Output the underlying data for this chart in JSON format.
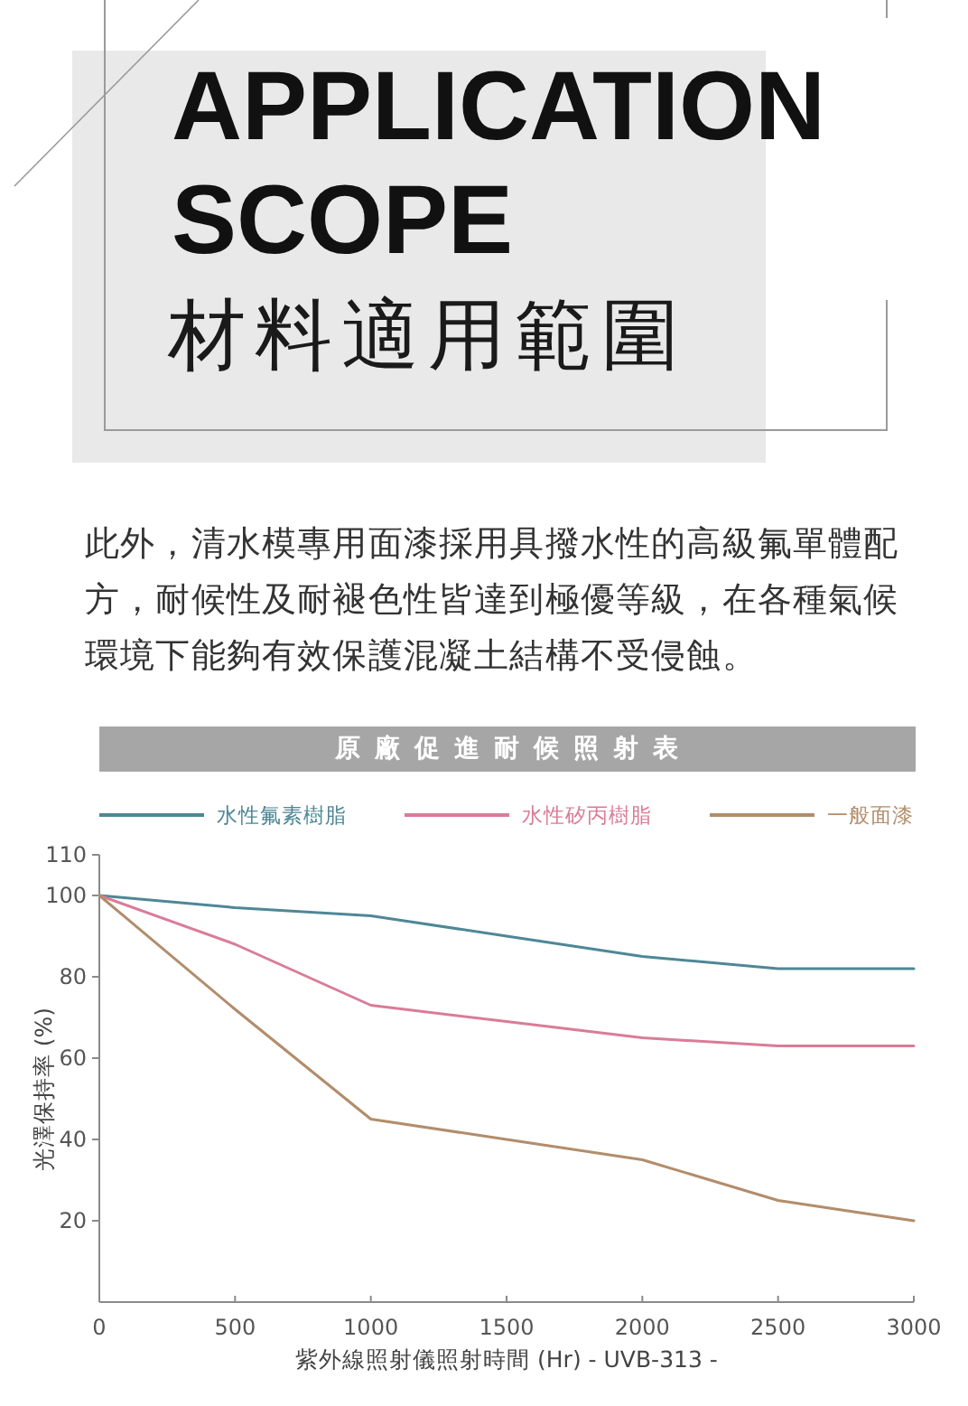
{
  "chart_data": {
    "type": "line",
    "title": "原廠促進耐候照射表",
    "annotations": [
      "APPLICATION SCOPE",
      "材料適用範圍",
      "此外，清水模專用面漆採用具撥水性的高級氟單體配方，耐候性及耐褪色性皆達到極優等級，在各種氣候環境下能夠有效保護混凝土結構不受侵蝕。"
    ],
    "xlabel": "紫外線照射儀照射時間 (Hr) - UVB-313 -",
    "ylabel": "光澤保持率 (%)",
    "x": [
      0,
      500,
      1000,
      1500,
      2000,
      2500,
      3000
    ],
    "series": [
      {
        "name": "水性氟素樹脂",
        "color": "#4e8796",
        "values": [
          100,
          97,
          95,
          90,
          85,
          82,
          82
        ]
      },
      {
        "name": "水性矽丙樹脂",
        "color": "#d97c98",
        "values": [
          100,
          88,
          73,
          69,
          65,
          63,
          63
        ]
      },
      {
        "name": "一般面漆",
        "color": "#b28d6b",
        "values": [
          100,
          72,
          45,
          40,
          35,
          25,
          20
        ]
      }
    ],
    "xlim": [
      0,
      3000
    ],
    "ylim": [
      0,
      110
    ],
    "xticks": [
      0,
      500,
      1000,
      1500,
      2000,
      2500,
      3000
    ],
    "yticks": [
      20,
      40,
      60,
      80,
      100,
      110
    ],
    "legend": "top"
  }
}
